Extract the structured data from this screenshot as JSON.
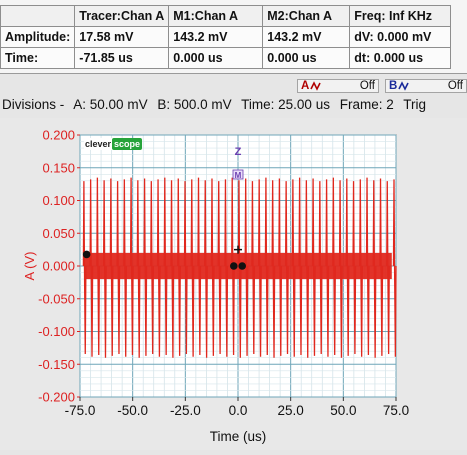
{
  "readout": {
    "headers": [
      "",
      "Tracer:Chan A",
      "M1:Chan A",
      "M2:Chan A",
      "Freq: Inf KHz"
    ],
    "rows": [
      {
        "label": "Amplitude:",
        "cells": [
          "17.58 mV",
          "143.2 mV",
          "143.2 mV",
          "dV: 0.000 mV"
        ]
      },
      {
        "label": "Time:",
        "cells": [
          "-71.85 us",
          "0.000 us",
          "0.000 us",
          "dt:  0.000 us"
        ]
      }
    ]
  },
  "toggles": [
    {
      "channel": "A",
      "state": "Off",
      "color": "#b00000"
    },
    {
      "channel": "B",
      "state": "Off",
      "color": "#1a2a9a"
    }
  ],
  "divisions": {
    "prefix": "Divisions -",
    "a": "A: 50.00 mV",
    "b": "B: 500.0 mV",
    "time": "Time: 25.00 us",
    "frame": "Frame: 2",
    "trig": "Trig"
  },
  "logo": {
    "part1": "clever",
    "part2": "scope"
  },
  "markers": {
    "z": "Z",
    "m": "M"
  },
  "chart_data": {
    "type": "line",
    "xlabel": "Time (us)",
    "ylabel": "A (V)",
    "xlim": [
      -75.0,
      75.0
    ],
    "ylim": [
      -0.2,
      0.2
    ],
    "x_ticks": [
      "-75.0",
      "-50.0",
      "-25.0",
      "0.0",
      "25.0",
      "50.0",
      "75.0"
    ],
    "y_ticks": [
      "0.200",
      "0.150",
      "0.100",
      "0.050",
      "0.000",
      "-0.050",
      "-0.100",
      "-0.150",
      "-0.200"
    ],
    "grid": true,
    "series": [
      {
        "color": "#e0281e",
        "spike_period_us": 3.2,
        "spike_high_v": 0.135,
        "spike_low_v": -0.14,
        "noise_band_v": [
          -0.02,
          0.02
        ]
      }
    ],
    "cursor_points": [
      {
        "x": -71.85,
        "y": 0.0176
      },
      {
        "x": -2.0,
        "y": 0.0
      },
      {
        "x": 2.0,
        "y": 0.0
      }
    ],
    "tracer_cross": {
      "x": 0.0,
      "y": 0.025
    }
  }
}
